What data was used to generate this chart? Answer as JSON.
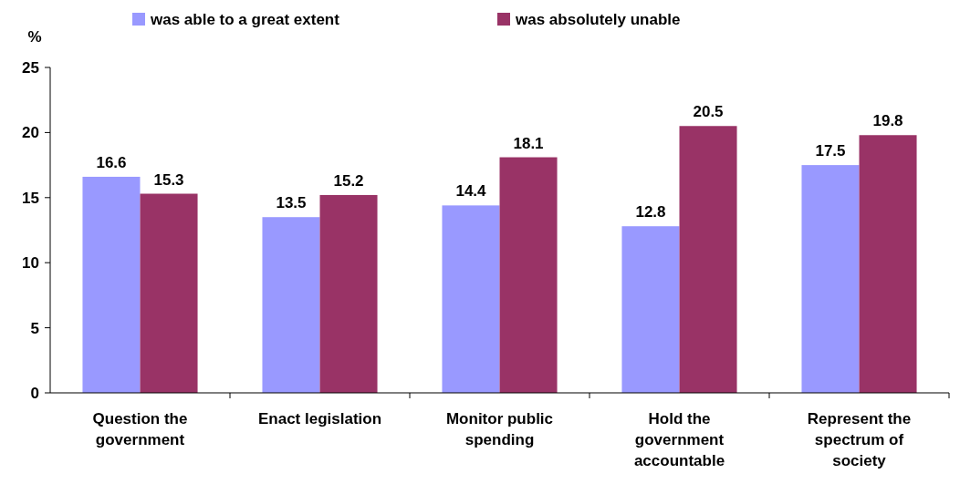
{
  "chart_data": {
    "type": "bar",
    "ylabel": "%",
    "categories": [
      "Question the government",
      "Enact legislation",
      "Monitor public spending",
      "Hold the government accountable",
      "Represent the spectrum of society"
    ],
    "series": [
      {
        "name": "was able to a great extent",
        "color": "#9999ff",
        "values": [
          16.6,
          13.5,
          14.4,
          12.8,
          17.5
        ]
      },
      {
        "name": "was absolutely unable",
        "color": "#993366",
        "values": [
          15.3,
          15.2,
          18.1,
          20.5,
          19.8
        ]
      }
    ],
    "ylim": [
      0,
      25
    ],
    "yticks": [
      0,
      5,
      10,
      15,
      20,
      25
    ],
    "grid": false,
    "legend": "top",
    "data_labels": true
  }
}
